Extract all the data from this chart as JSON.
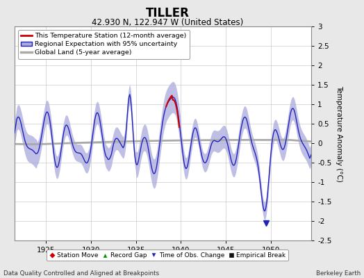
{
  "title": "TILLER",
  "subtitle": "42.930 N, 122.947 W (United States)",
  "ylabel": "Temperature Anomaly (°C)",
  "xlabel_left": "Data Quality Controlled and Aligned at Breakpoints",
  "xlabel_right": "Berkeley Earth",
  "ylim": [
    -2.5,
    3.0
  ],
  "xlim": [
    1921.5,
    1954.5
  ],
  "xticks": [
    1925,
    1930,
    1935,
    1940,
    1945,
    1950
  ],
  "yticks": [
    -2.5,
    -2,
    -1.5,
    -1,
    -0.5,
    0,
    0.5,
    1,
    1.5,
    2,
    2.5,
    3
  ],
  "background_color": "#e8e8e8",
  "plot_bg_color": "#ffffff",
  "regional_color": "#2222bb",
  "regional_shade_color": "#aaaadd",
  "global_color": "#aaaaaa",
  "station_color": "#cc0000",
  "legend_items": [
    {
      "label": "This Temperature Station (12-month average)",
      "color": "#cc0000"
    },
    {
      "label": "Regional Expectation with 95% uncertainty",
      "color": "#2222bb",
      "shade": "#aaaadd"
    },
    {
      "label": "Global Land (5-year average)",
      "color": "#aaaaaa"
    }
  ],
  "bottom_legend": [
    {
      "label": "Station Move",
      "color": "#cc0000",
      "marker": "D"
    },
    {
      "label": "Record Gap",
      "color": "#009900",
      "marker": "^"
    },
    {
      "label": "Time of Obs. Change",
      "color": "#2222bb",
      "marker": "v"
    },
    {
      "label": "Empirical Break",
      "color": "#111111",
      "marker": "s"
    }
  ],
  "tobs_year": 1949.5,
  "tobs_val": -2.05
}
